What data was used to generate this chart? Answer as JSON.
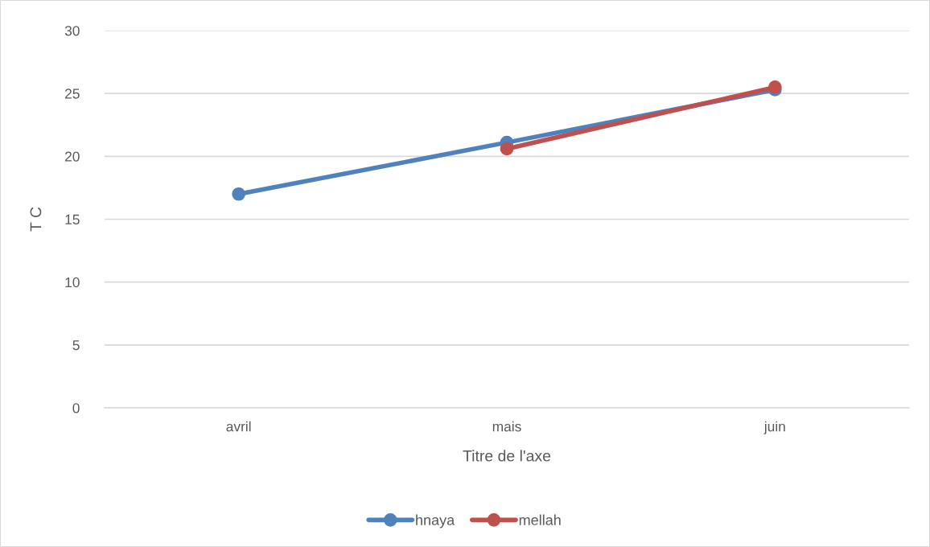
{
  "chart_data": {
    "type": "line",
    "xlabel": "Titre de l'axe",
    "ylabel": "T C",
    "categories": [
      "avril",
      "mais",
      "juin"
    ],
    "series": [
      {
        "name": "hnaya",
        "color": "#4f81bd",
        "values": [
          17.0,
          21.1,
          25.3
        ]
      },
      {
        "name": "mellah",
        "color": "#c0504d",
        "values": [
          null,
          20.6,
          25.5
        ]
      }
    ],
    "ylim": [
      0,
      30
    ],
    "yticks": [
      0,
      5,
      10,
      15,
      20,
      25,
      30
    ],
    "grid": "y",
    "legend": "bottom",
    "marker": "circle",
    "line_style": "solid"
  }
}
